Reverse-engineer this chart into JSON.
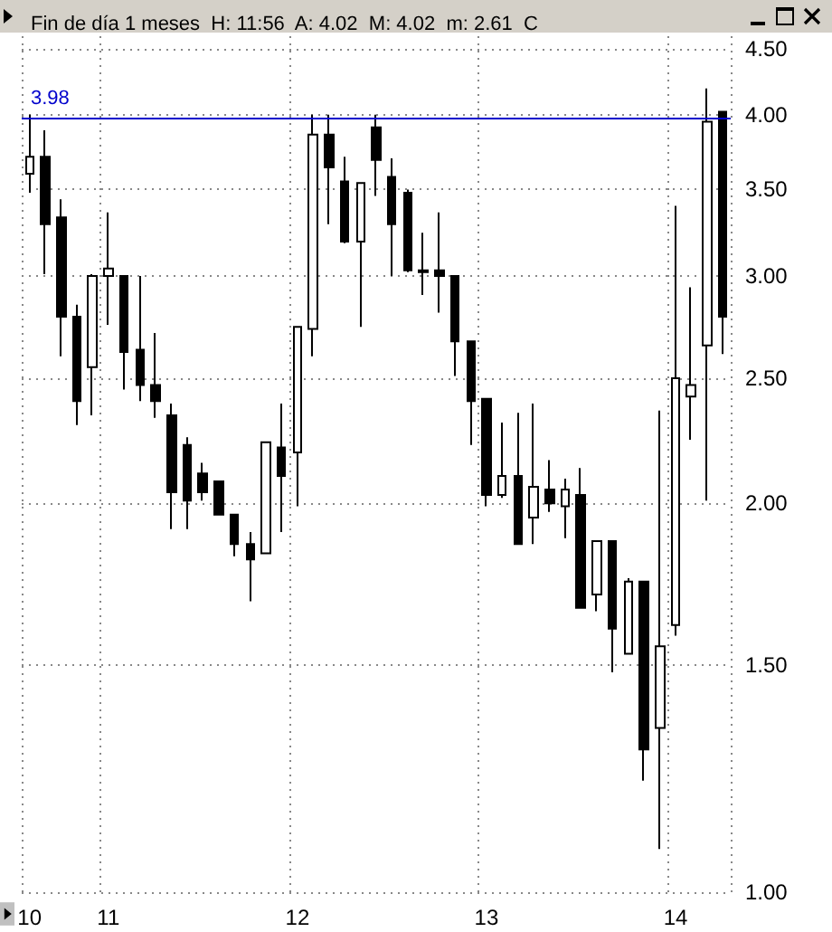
{
  "chart_data": {
    "type": "candlestick",
    "title": "Fin de día 1 meses  H: 11:56  A: 4.02  M: 4.02  m: 2.61  C",
    "categories": [
      "10",
      null,
      null,
      null,
      null,
      "11",
      null,
      null,
      null,
      null,
      null,
      null,
      null,
      null,
      null,
      null,
      null,
      "12",
      null,
      null,
      null,
      null,
      null,
      null,
      null,
      null,
      null,
      null,
      null,
      "13",
      null,
      null,
      null,
      null,
      null,
      null,
      null,
      null,
      null,
      null,
      null,
      "14",
      null,
      null,
      null
    ],
    "ohlc": [
      [
        3.6,
        4.0,
        3.48,
        3.71
      ],
      [
        3.71,
        3.89,
        3.01,
        3.29
      ],
      [
        3.33,
        3.44,
        2.6,
        2.79
      ],
      [
        2.79,
        2.85,
        2.3,
        2.4
      ],
      [
        2.55,
        3.01,
        2.34,
        3.0
      ],
      [
        3.0,
        3.36,
        2.75,
        3.04
      ],
      [
        3.0,
        3.0,
        2.45,
        2.62
      ],
      [
        2.63,
        3.0,
        2.4,
        2.47
      ],
      [
        2.47,
        2.71,
        2.33,
        2.4
      ],
      [
        2.34,
        2.39,
        1.91,
        2.04
      ],
      [
        2.22,
        2.25,
        1.91,
        2.01
      ],
      [
        2.11,
        2.15,
        2.01,
        2.04
      ],
      [
        2.08,
        2.08,
        1.96,
        1.96
      ],
      [
        1.96,
        1.96,
        1.82,
        1.86
      ],
      [
        1.86,
        1.9,
        1.68,
        1.81
      ],
      [
        1.83,
        2.23,
        1.83,
        2.23
      ],
      [
        2.21,
        2.39,
        1.9,
        2.1
      ],
      [
        2.19,
        2.74,
        1.99,
        2.74
      ],
      [
        2.73,
        4.0,
        2.6,
        3.86
      ],
      [
        3.86,
        4.0,
        3.29,
        3.64
      ],
      [
        3.55,
        3.71,
        3.18,
        3.19
      ],
      [
        3.19,
        3.54,
        2.74,
        3.54
      ],
      [
        3.91,
        4.0,
        3.46,
        3.69
      ],
      [
        3.58,
        3.7,
        3.0,
        3.29
      ],
      [
        3.48,
        3.5,
        3.02,
        3.03
      ],
      [
        3.03,
        3.24,
        2.9,
        3.02
      ],
      [
        3.03,
        3.36,
        2.81,
        3.0
      ],
      [
        3.0,
        3.0,
        2.51,
        2.67
      ],
      [
        2.67,
        2.67,
        2.22,
        2.4
      ],
      [
        2.41,
        2.41,
        1.99,
        2.03
      ],
      [
        2.03,
        2.31,
        2.02,
        2.1
      ],
      [
        2.1,
        2.35,
        1.86,
        1.86
      ],
      [
        1.95,
        2.39,
        1.86,
        2.06
      ],
      [
        2.05,
        2.16,
        1.97,
        2.0
      ],
      [
        1.99,
        2.09,
        1.88,
        2.05
      ],
      [
        2.03,
        2.13,
        1.66,
        1.66
      ],
      [
        1.7,
        1.87,
        1.65,
        1.87
      ],
      [
        1.87,
        1.87,
        1.48,
        1.6
      ],
      [
        1.53,
        1.75,
        1.53,
        1.74
      ],
      [
        1.74,
        1.74,
        1.22,
        1.29
      ],
      [
        1.34,
        2.36,
        1.08,
        1.55
      ],
      [
        1.61,
        3.4,
        1.58,
        2.5
      ],
      [
        2.42,
        2.94,
        2.24,
        2.47
      ],
      [
        2.65,
        4.19,
        2.01,
        3.95
      ],
      [
        4.02,
        4.02,
        2.61,
        2.79
      ]
    ],
    "ylim": [
      1.0,
      4.6
    ],
    "yticks": [
      {
        "value": 1,
        "label": "1.00"
      },
      {
        "value": 1.5,
        "label": "1.50"
      },
      {
        "value": 2,
        "label": "2.00"
      },
      {
        "value": 2.5,
        "label": "2.50"
      },
      {
        "value": 3,
        "label": "3.00"
      },
      {
        "value": 3.5,
        "label": "3.50"
      },
      {
        "value": 4,
        "label": "4.00"
      },
      {
        "value": 4.5,
        "label": "4.50"
      }
    ],
    "log": true,
    "grid": true,
    "ref_lines": [
      {
        "axis": "y",
        "value": 3.98,
        "label": "3.98",
        "color": "#0000cc"
      }
    ]
  }
}
